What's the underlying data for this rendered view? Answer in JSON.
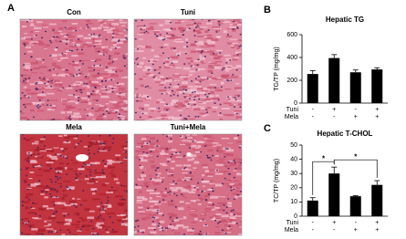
{
  "histology": {
    "label": "A",
    "images": [
      {
        "title": "Con"
      },
      {
        "title": "Tuni"
      },
      {
        "title": "Mela"
      },
      {
        "title": "Tuni+Mela"
      }
    ]
  },
  "chart_data": [
    {
      "type": "bar",
      "label": "B",
      "title": "Hepatic TG",
      "ylabel": "TG/TP (mg/mg)",
      "color": "#000000",
      "values": [
        255,
        395,
        270,
        295
      ],
      "errors": [
        30,
        30,
        20,
        15
      ],
      "ylim": [
        0,
        600
      ],
      "yticks": [
        0,
        200,
        400,
        600
      ],
      "treatments": [
        {
          "name": "Tuni",
          "signs": [
            "-",
            "+",
            "-",
            "+"
          ]
        },
        {
          "name": "Mela",
          "signs": [
            "-",
            "-",
            "+",
            "+"
          ]
        }
      ]
    },
    {
      "type": "bar",
      "label": "C",
      "title": "Hepatic T-CHOL",
      "ylabel": "TC/TP (mg/mg)",
      "color": "#000000",
      "values": [
        11,
        30,
        14,
        22
      ],
      "errors": [
        2,
        4.5,
        0.5,
        3
      ],
      "ylim": [
        0,
        50
      ],
      "yticks": [
        0,
        10,
        20,
        30,
        40,
        50
      ],
      "annotations": [
        "*",
        "*"
      ],
      "treatments": [
        {
          "name": "Tuni",
          "signs": [
            "-",
            "+",
            "-",
            "+"
          ]
        },
        {
          "name": "Mela",
          "signs": [
            "-",
            "-",
            "+",
            "+"
          ]
        }
      ]
    }
  ]
}
